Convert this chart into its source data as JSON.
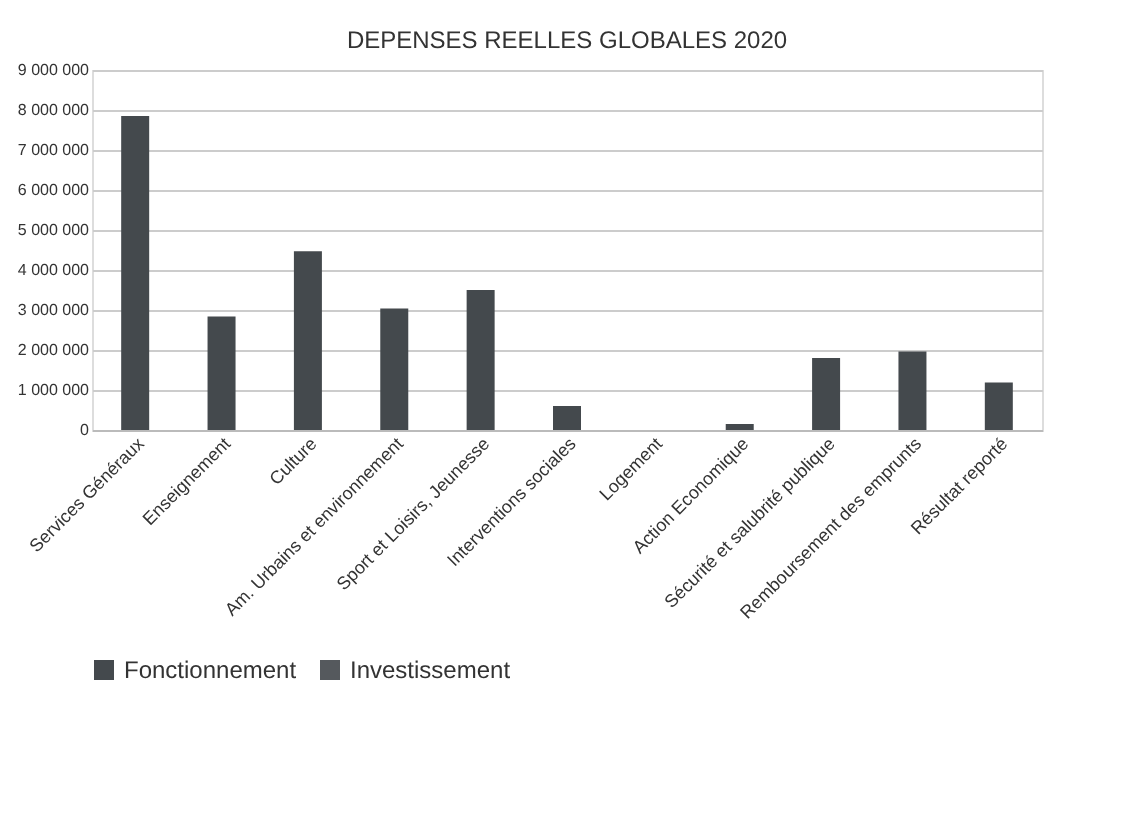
{
  "chart_data": {
    "type": "bar",
    "title": "DEPENSES REELLES GLOBALES 2020",
    "categories": [
      "Services Généraux",
      "Enseignement",
      "Culture",
      "Am. Urbains et environnement",
      "Sport et Loisirs, Jeunesse",
      "Interventions sociales",
      "Logement",
      "Action Economique",
      "Sécurité et salubrité publique",
      "Remboursement des emprunts",
      "Résultat reporté"
    ],
    "series": [
      {
        "name": "Fonctionnement",
        "color": "#44494d",
        "values": [
          7850000,
          2840000,
          4470000,
          3040000,
          3500000,
          600000,
          0,
          150000,
          1800000,
          1960000,
          1190000
        ]
      },
      {
        "name": "Investissement",
        "color": "#55595d",
        "values": [
          null,
          null,
          null,
          null,
          null,
          null,
          null,
          null,
          null,
          null,
          null
        ]
      }
    ],
    "ylim": [
      0,
      9000000
    ],
    "yticks": [
      {
        "value": 0,
        "label": "0"
      },
      {
        "value": 1000000,
        "label": "1 000 000"
      },
      {
        "value": 2000000,
        "label": "2 000 000"
      },
      {
        "value": 3000000,
        "label": "3 000 000"
      },
      {
        "value": 4000000,
        "label": "4 000 000"
      },
      {
        "value": 5000000,
        "label": "5 000 000"
      },
      {
        "value": 6000000,
        "label": "6 000 000"
      },
      {
        "value": 7000000,
        "label": "7 000 000"
      },
      {
        "value": 8000000,
        "label": "8 000 000"
      },
      {
        "value": 9000000,
        "label": "9 000 000"
      }
    ],
    "grid": "y",
    "legend": "bottom"
  }
}
